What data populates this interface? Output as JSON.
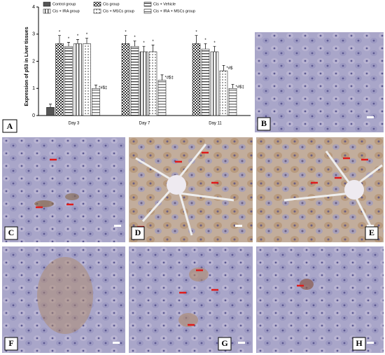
{
  "chart_data": {
    "type": "bar",
    "panel_label": "A",
    "ylabel": "Expression of p53 in Liver tissues",
    "categories": [
      "Day 3",
      "Day 7",
      "Day 11"
    ],
    "ylim": [
      0,
      4
    ],
    "yticks": [
      0,
      1,
      2,
      3,
      4
    ],
    "series": [
      {
        "name": "Control group",
        "color": "#555555",
        "pattern": "solid",
        "values": [
          0.3,
          null,
          null
        ],
        "errors": [
          0.12,
          null,
          null
        ],
        "annotations": [
          null,
          null,
          null
        ]
      },
      {
        "name": "Cis group",
        "color": "#333333",
        "pattern": "checker",
        "values": [
          2.65,
          2.65,
          2.65
        ],
        "errors": [
          0.3,
          0.3,
          0.3
        ],
        "annotations": [
          "*",
          "*",
          "*"
        ]
      },
      {
        "name": "Cis + Vehicle",
        "color": "#444444",
        "pattern": "hlines",
        "values": [
          2.55,
          2.55,
          2.45
        ],
        "errors": [
          0.15,
          0.2,
          0.2
        ],
        "annotations": [
          "*",
          "*",
          "*"
        ]
      },
      {
        "name": "Cis + IRA group",
        "color": "#444444",
        "pattern": "vlines",
        "values": [
          2.65,
          2.35,
          2.35
        ],
        "errors": [
          0.15,
          0.2,
          0.2
        ],
        "annotations": [
          "*",
          "*",
          "*"
        ]
      },
      {
        "name": "Cis + MSCs group",
        "color": "#666666",
        "pattern": "dots",
        "values": [
          2.65,
          2.35,
          1.65
        ],
        "errors": [
          0.2,
          0.25,
          0.2
        ],
        "annotations": [
          "*",
          "*",
          "*#$"
        ]
      },
      {
        "name": "Cis + IRA + MSCs group",
        "color": "#777777",
        "pattern": "hlines",
        "values": [
          1.0,
          1.3,
          1.0
        ],
        "errors": [
          0.12,
          0.2,
          0.15
        ],
        "annotations": [
          "*#$‡",
          "*#$‡",
          "*#$‡"
        ]
      }
    ]
  },
  "panels": [
    "B",
    "C",
    "D",
    "E",
    "F",
    "G",
    "H"
  ]
}
